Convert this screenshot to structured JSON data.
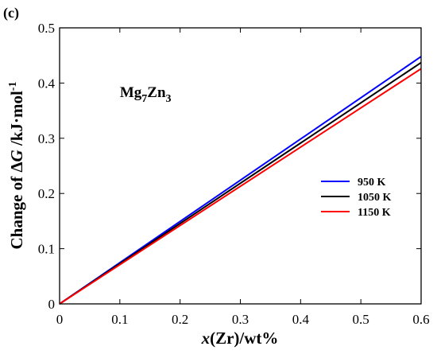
{
  "panel_label": "(c)",
  "chart_data": {
    "type": "line",
    "title": "",
    "xlabel_italic": "x",
    "xlabel_rest": "(Zr)/wt%",
    "ylabel_pre": "Change of ",
    "ylabel_delta": "Δ",
    "ylabel_G": "G",
    "ylabel_units": " /kJ·mol",
    "ylabel_sup": "-1",
    "xlim": [
      0,
      0.6
    ],
    "ylim": [
      0,
      0.5
    ],
    "xticks": [
      0,
      0.1,
      0.2,
      0.3,
      0.4,
      0.5,
      0.6
    ],
    "yticks": [
      0,
      0.1,
      0.2,
      0.3,
      0.4,
      0.5
    ],
    "xtick_labels": [
      "0",
      "0.1",
      "0.2",
      "0.3",
      "0.4",
      "0.5",
      "0.6"
    ],
    "ytick_labels": [
      "0",
      "0.1",
      "0.2",
      "0.3",
      "0.4",
      "0.5"
    ],
    "annotation": {
      "base1": "Mg",
      "sub1": "7",
      "base2": "Zn",
      "sub2": "3",
      "x": 0.1,
      "y": 0.375
    },
    "legend_position": "center-right",
    "series": [
      {
        "name": "950 K",
        "color": "#0000ff",
        "x": [
          0,
          0.6
        ],
        "y": [
          0,
          0.448
        ]
      },
      {
        "name": "1050 K",
        "color": "#000000",
        "x": [
          0,
          0.6
        ],
        "y": [
          0,
          0.437
        ]
      },
      {
        "name": "1150 K",
        "color": "#ff0000",
        "x": [
          0,
          0.6
        ],
        "y": [
          0,
          0.426
        ]
      }
    ],
    "grid": false
  }
}
